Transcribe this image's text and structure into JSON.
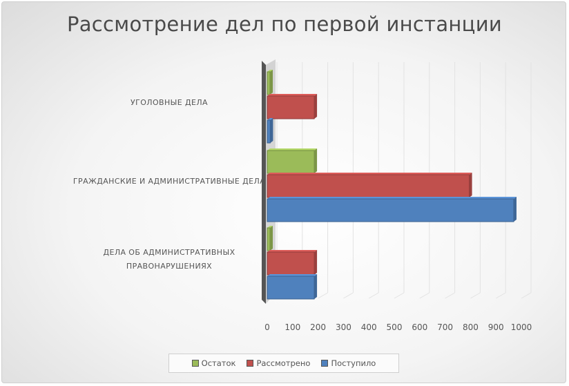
{
  "chart_data": {
    "type": "bar",
    "orientation": "horizontal",
    "title": "Рассмотрение дел по первой инстанции",
    "categories": [
      "УГОЛОВНЫЕ ДЕЛА",
      "ГРАЖДАНСКИЕ И АДМИНИСТРАТИВНЫЕ ДЕЛА",
      "ДЕЛА ОБ АДМИНИСТРАТИВНЫХ ПРАВОНАРУШЕНИЯХ"
    ],
    "series": [
      {
        "name": "Остаток",
        "color": "#9bbb59",
        "values": [
          10,
          185,
          5
        ]
      },
      {
        "name": "Рассмотрено",
        "color": "#c0504d",
        "values": [
          185,
          795,
          185
        ]
      },
      {
        "name": "Поступило",
        "color": "#4f81bd",
        "values": [
          12,
          970,
          185
        ]
      }
    ],
    "xlim": [
      0,
      1000
    ],
    "x_ticks": [
      "0",
      "100",
      "200",
      "300",
      "400",
      "500",
      "600",
      "700",
      "800",
      "900",
      "1000"
    ],
    "grid": true,
    "legend_position": "bottom",
    "style": "3d"
  }
}
